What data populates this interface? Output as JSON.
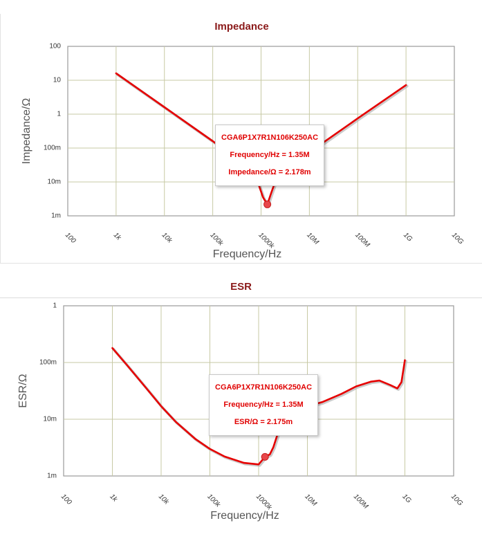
{
  "chart_data": [
    {
      "type": "line",
      "title": "Impedance",
      "xlabel": "Frequency/Hz",
      "ylabel": "Impedance/Ω",
      "x_scale": "log",
      "y_scale": "log",
      "xlim": [
        100,
        10000000000
      ],
      "ylim": [
        0.001,
        100
      ],
      "x_tick_labels": [
        "100",
        "1k",
        "10k",
        "100k",
        "1000k",
        "10M",
        "100M",
        "1G",
        "10G"
      ],
      "y_tick_labels": [
        "100",
        "10",
        "1",
        "100m",
        "10m",
        "1m"
      ],
      "grid": true,
      "series": [
        {
          "color": "#e60000",
          "x": [
            1000,
            10000,
            100000,
            300000,
            600000,
            900000,
            1100000,
            1350000,
            1600000,
            2000000,
            3000000,
            10000000,
            100000000,
            1000000000
          ],
          "y": [
            16,
            1.6,
            0.16,
            0.05,
            0.022,
            0.008,
            0.0035,
            0.002178,
            0.0045,
            0.011,
            0.025,
            0.075,
            0.75,
            7.2
          ]
        }
      ],
      "marker": {
        "x": 1350000,
        "y": 0.002178
      },
      "tooltip": {
        "part": "CGA6P1X7R1N106K250AC",
        "frequency": "Frequency/Hz = 1.35M",
        "value": "Impedance/Ω = 2.178m"
      }
    },
    {
      "type": "line",
      "title": "ESR",
      "xlabel": "Frequency/Hz",
      "ylabel": "ESR/Ω",
      "x_scale": "log",
      "y_scale": "log",
      "xlim": [
        100,
        10000000000
      ],
      "ylim": [
        0.001,
        1
      ],
      "x_tick_labels": [
        "100",
        "1k",
        "10k",
        "100k",
        "1000k",
        "10M",
        "100M",
        "1G",
        "10G"
      ],
      "y_tick_labels": [
        "1",
        "100m",
        "10m",
        "1m"
      ],
      "grid": true,
      "series": [
        {
          "color": "#e60000",
          "x": [
            1000,
            2000,
            5000,
            10000,
            20000,
            50000,
            100000,
            200000,
            500000,
            1000000,
            1350000,
            1700000,
            2000000,
            2500000,
            3000000,
            5000000,
            10000000,
            20000000,
            50000000,
            100000000,
            200000000,
            300000000,
            500000000,
            700000000,
            850000000,
            1000000000
          ],
          "y": [
            0.18,
            0.09,
            0.035,
            0.017,
            0.009,
            0.0045,
            0.003,
            0.0022,
            0.0017,
            0.0016,
            0.002175,
            0.0024,
            0.0032,
            0.0058,
            0.01,
            0.014,
            0.017,
            0.02,
            0.028,
            0.038,
            0.046,
            0.048,
            0.04,
            0.035,
            0.045,
            0.11
          ]
        }
      ],
      "marker": {
        "x": 1350000,
        "y": 0.002175
      },
      "tooltip": {
        "part": "CGA6P1X7R1N106K250AC",
        "frequency": "Frequency/Hz = 1.35M",
        "value": "ESR/Ω = 2.175m"
      }
    }
  ]
}
